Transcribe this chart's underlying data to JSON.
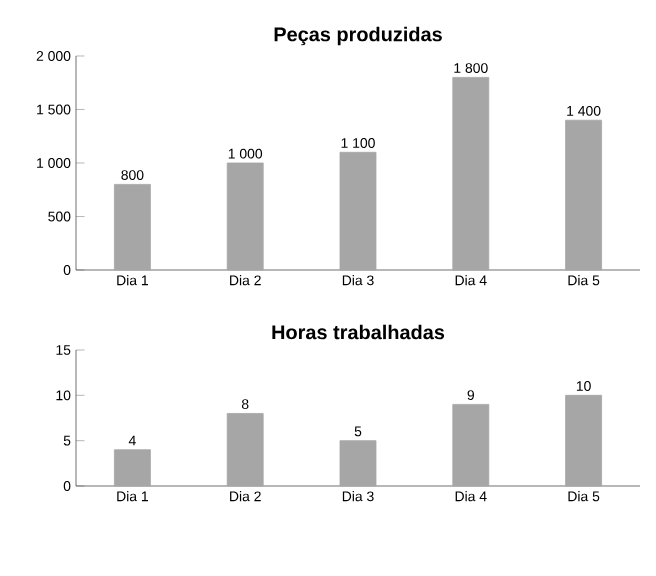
{
  "chart_data": [
    {
      "type": "bar",
      "title": "**Peças produzidas**",
      "categories": [
        "Dia 1",
        "Dia 2",
        "Dia 3",
        "Dia 4",
        "Dia 5"
      ],
      "values": [
        800,
        1000,
        1100,
        1800,
        1400
      ],
      "value_labels": [
        "800",
        "1 000",
        "1 100",
        "1 800",
        "1 400"
      ],
      "color": "#a6a6a6",
      "ylim": [
        0,
        2000
      ],
      "yticks": [
        0,
        500,
        {
          "value": 1000,
          "label": "1 000"
        },
        {
          "value": 1500,
          "label": "1 500"
        },
        {
          "value": 2000,
          "label": "2 000"
        }
      ]
    },
    {
      "type": "bar",
      "title": "**Horas trabalhadas**",
      "categories": [
        "Dia 1",
        "Dia 2",
        "Dia 3",
        "Dia 4",
        "Dia 5"
      ],
      "values": [
        4,
        8,
        5,
        9,
        10
      ],
      "data_labels": true,
      "color": "#a6a6a6",
      "ylim": [
        0,
        15
      ],
      "yticks": [
        0,
        5,
        10,
        15
      ]
    }
  ]
}
